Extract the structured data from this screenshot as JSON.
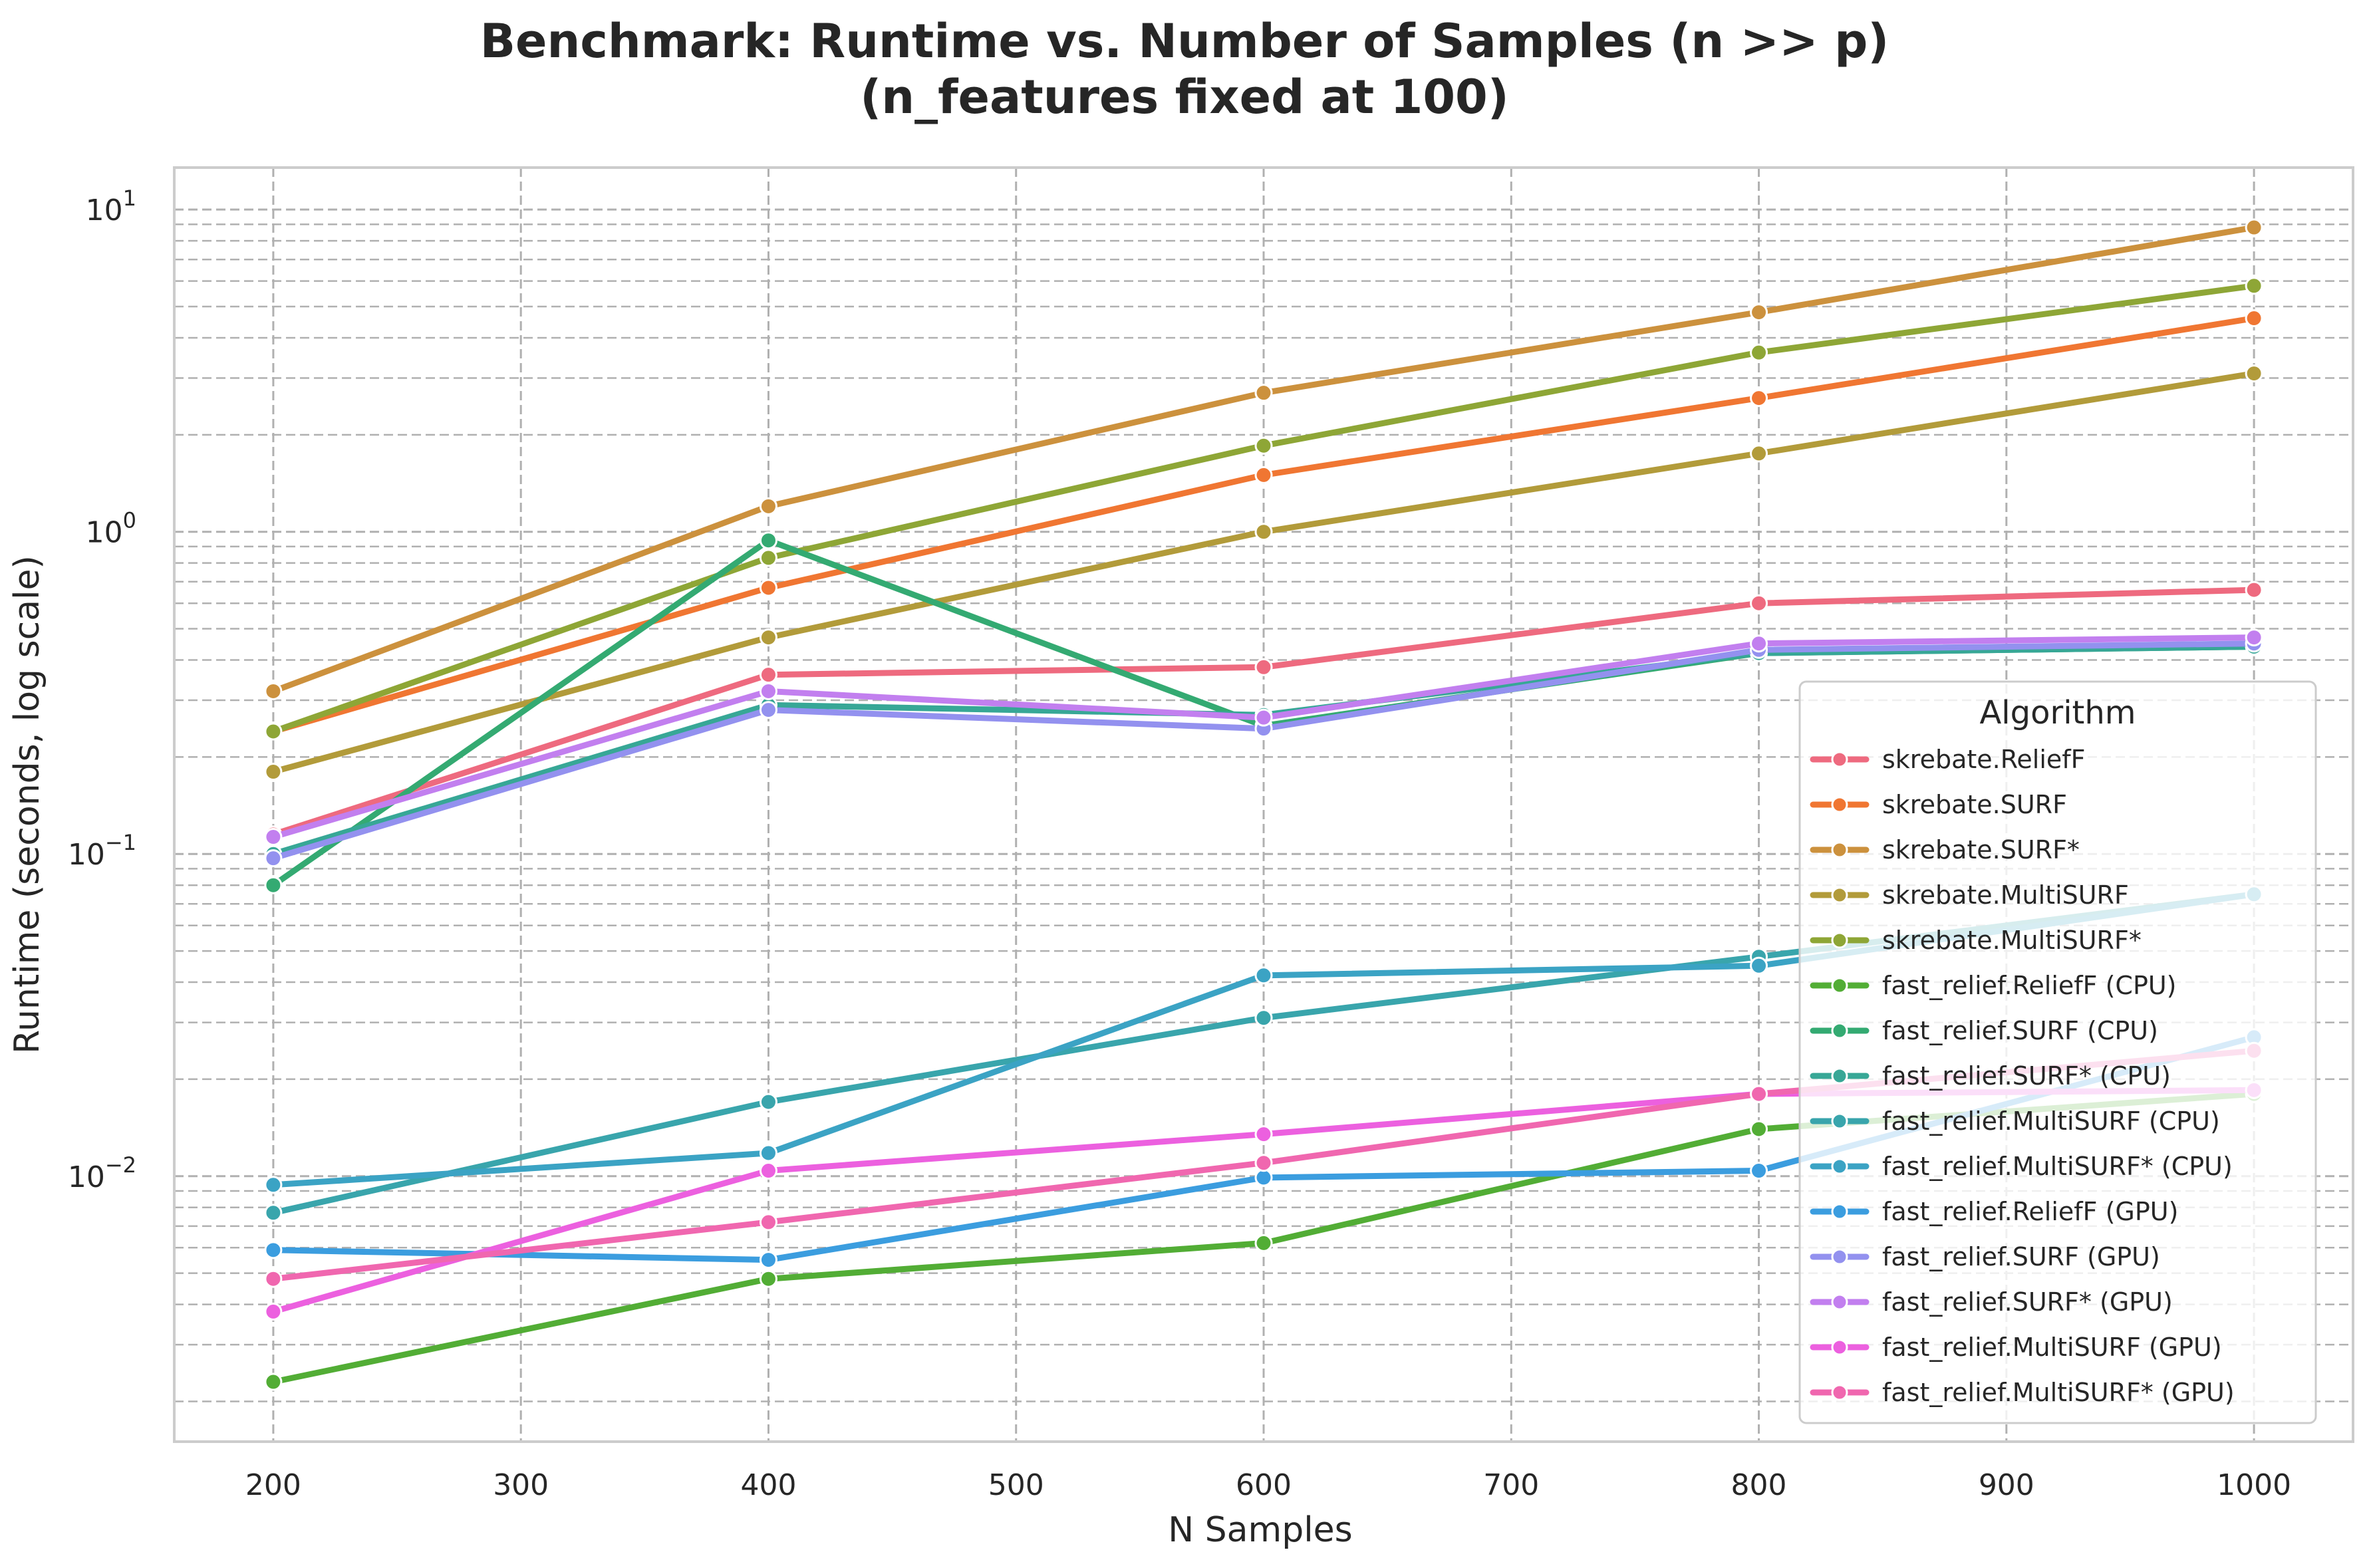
{
  "chart_data": {
    "type": "line",
    "title": "Benchmark: Runtime vs. Number of Samples (n >> p)",
    "subtitle": "(n_features fixed at 100)",
    "xlabel": "N Samples",
    "ylabel": "Runtime (seconds, log scale)",
    "xlim": [
      160,
      1040
    ],
    "ylim": [
      0.0015,
      13.5
    ],
    "yscale": "log",
    "grid": "on",
    "legend_placement": "lower-right",
    "legend_title": "Algorithm",
    "x_ticks": [
      200,
      300,
      400,
      500,
      600,
      700,
      800,
      900,
      1000
    ],
    "y_ticks": [
      {
        "value": 0.01,
        "base": "10",
        "exp": "−2"
      },
      {
        "value": 0.1,
        "base": "10",
        "exp": "−1"
      },
      {
        "value": 1,
        "base": "10",
        "exp": "0"
      },
      {
        "value": 10,
        "base": "10",
        "exp": "1"
      }
    ],
    "x": [
      200,
      400,
      600,
      800,
      1000
    ],
    "series": [
      {
        "name": "skrebate.ReliefF",
        "color": "#ee6a7f",
        "values": [
          0.115,
          0.36,
          0.38,
          0.6,
          0.66
        ]
      },
      {
        "name": "skrebate.SURF",
        "color": "#f07632",
        "values": [
          0.24,
          0.67,
          1.5,
          2.6,
          4.6
        ]
      },
      {
        "name": "skrebate.SURF*",
        "color": "#cc913d",
        "values": [
          0.32,
          1.2,
          2.7,
          4.8,
          8.8
        ]
      },
      {
        "name": "skrebate.MultiSURF",
        "color": "#b29b3a",
        "values": [
          0.18,
          0.47,
          1.0,
          1.75,
          3.1
        ]
      },
      {
        "name": "skrebate.MultiSURF*",
        "color": "#8ea636",
        "values": [
          0.24,
          0.83,
          1.85,
          3.6,
          5.8
        ]
      },
      {
        "name": "fast_relief.ReliefF (CPU)",
        "color": "#52ad35",
        "values": [
          0.0023,
          0.0048,
          0.0062,
          0.014,
          0.018
        ]
      },
      {
        "name": "fast_relief.SURF (CPU)",
        "color": "#34aa72",
        "values": [
          0.08,
          0.94,
          0.25,
          0.42,
          0.44
        ]
      },
      {
        "name": "fast_relief.SURF* (CPU)",
        "color": "#37a796",
        "values": [
          0.1,
          0.29,
          0.27,
          0.42,
          0.44
        ]
      },
      {
        "name": "fast_relief.MultiSURF (CPU)",
        "color": "#39a5ac",
        "values": [
          0.0077,
          0.017,
          0.031,
          0.048,
          0.075
        ]
      },
      {
        "name": "fast_relief.MultiSURF* (CPU)",
        "color": "#3ba3c4",
        "values": [
          0.0094,
          0.0118,
          0.042,
          0.045,
          0.075
        ]
      },
      {
        "name": "fast_relief.ReliefF (GPU)",
        "color": "#3b9ddf",
        "values": [
          0.0059,
          0.0055,
          0.0099,
          0.0104,
          0.027
        ]
      },
      {
        "name": "fast_relief.SURF (GPU)",
        "color": "#9391ef",
        "values": [
          0.097,
          0.28,
          0.245,
          0.43,
          0.45
        ]
      },
      {
        "name": "fast_relief.SURF* (GPU)",
        "color": "#c27fef",
        "values": [
          0.113,
          0.32,
          0.265,
          0.45,
          0.47
        ]
      },
      {
        "name": "fast_relief.MultiSURF (GPU)",
        "color": "#ec60df",
        "values": [
          0.0038,
          0.0104,
          0.0135,
          0.018,
          0.0185
        ]
      },
      {
        "name": "fast_relief.MultiSURF* (GPU)",
        "color": "#f067af",
        "values": [
          0.0048,
          0.0072,
          0.011,
          0.018,
          0.0245
        ]
      }
    ]
  }
}
